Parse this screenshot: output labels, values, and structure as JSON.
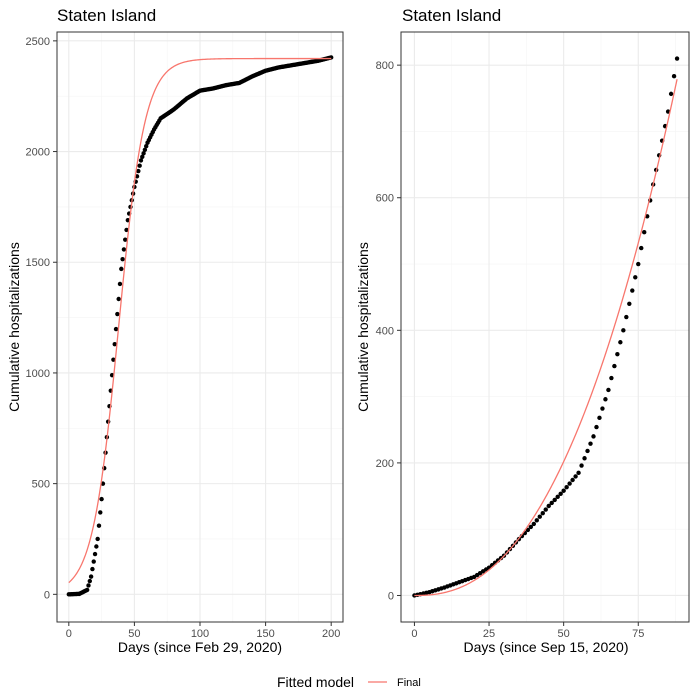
{
  "colors": {
    "fit": "#f8766d",
    "points": "#000000",
    "grid_major": "#ebebeb",
    "grid_minor": "#f5f5f5",
    "border": "#333333"
  },
  "legend": {
    "title": "Fitted model",
    "entries": [
      "Final"
    ],
    "placement": "bottom"
  },
  "chart_data": [
    {
      "type": "scatter",
      "title": "Staten Island",
      "xlabel": "Days (since Feb 29, 2020)",
      "ylabel": "Cumulative hospitalizations",
      "xlim": [
        -9,
        209
      ],
      "ylim": [
        -125,
        2540
      ],
      "xticks": [
        0,
        50,
        100,
        150,
        200
      ],
      "yticks": [
        0,
        500,
        1000,
        1500,
        2000,
        2500
      ],
      "grid": true,
      "observed_knots": [
        [
          0,
          0
        ],
        [
          8,
          2
        ],
        [
          14,
          20
        ],
        [
          17,
          80
        ],
        [
          22,
          250
        ],
        [
          25,
          430
        ],
        [
          30,
          780
        ],
        [
          35,
          1130
        ],
        [
          40,
          1470
        ],
        [
          45,
          1690
        ],
        [
          50,
          1840
        ],
        [
          55,
          1960
        ],
        [
          60,
          2040
        ],
        [
          65,
          2100
        ],
        [
          70,
          2150
        ],
        [
          80,
          2190
        ],
        [
          90,
          2240
        ],
        [
          100,
          2275
        ],
        [
          110,
          2285
        ],
        [
          120,
          2300
        ],
        [
          130,
          2310
        ],
        [
          140,
          2340
        ],
        [
          150,
          2365
        ],
        [
          160,
          2380
        ],
        [
          170,
          2390
        ],
        [
          180,
          2400
        ],
        [
          190,
          2410
        ],
        [
          200,
          2425
        ]
      ],
      "fitted_series": {
        "name": "Final",
        "model": "logistic",
        "K": 2420,
        "r": 0.1,
        "t0": 38,
        "x_range": [
          0,
          200
        ]
      }
    },
    {
      "type": "scatter",
      "title": "Staten Island",
      "xlabel": "Days (since Sep 15, 2020)",
      "ylabel": "Cumulative hospitalizations",
      "xlim": [
        -4.5,
        92
      ],
      "ylim": [
        -40,
        850
      ],
      "xticks": [
        0,
        25,
        50,
        75
      ],
      "yticks": [
        0,
        200,
        400,
        600,
        800
      ],
      "grid": true,
      "observed_knots": [
        [
          0,
          0
        ],
        [
          5,
          5
        ],
        [
          10,
          12
        ],
        [
          15,
          20
        ],
        [
          20,
          28
        ],
        [
          25,
          42
        ],
        [
          30,
          60
        ],
        [
          35,
          85
        ],
        [
          40,
          108
        ],
        [
          45,
          135
        ],
        [
          50,
          158
        ],
        [
          55,
          185
        ],
        [
          60,
          240
        ],
        [
          65,
          310
        ],
        [
          70,
          400
        ],
        [
          75,
          500
        ],
        [
          80,
          620
        ],
        [
          85,
          730
        ],
        [
          88,
          810
        ]
      ],
      "fitted_series": {
        "name": "Final",
        "model": "power",
        "a": 0.0177,
        "b": 2.388,
        "x_range": [
          0,
          88
        ]
      }
    }
  ]
}
